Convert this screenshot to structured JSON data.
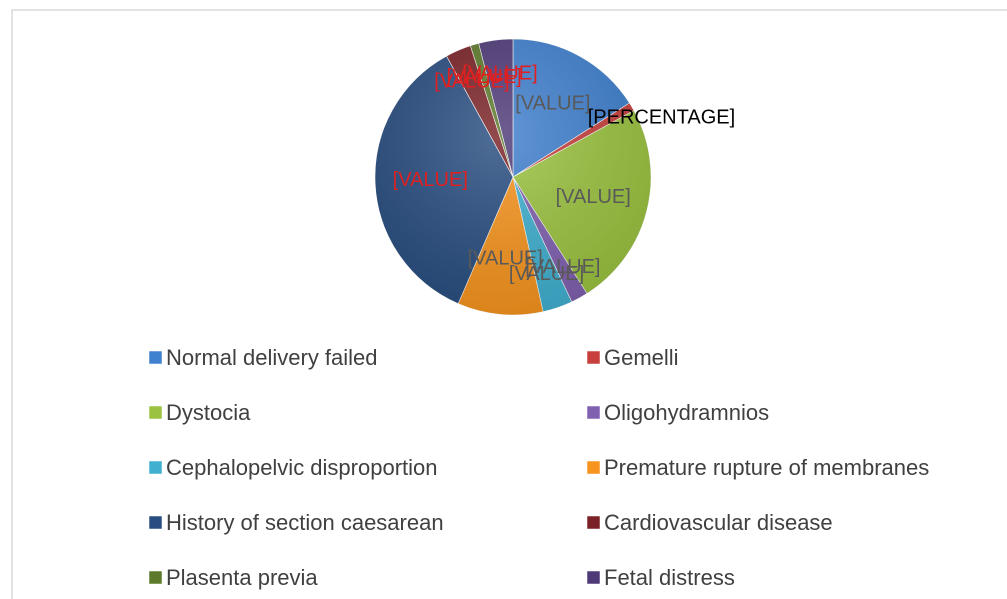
{
  "chart_data": {
    "type": "pie",
    "categories": [
      "Normal delivery failed",
      "Gemelli",
      "Dystocia",
      "Oligohydramnios",
      "Cephalopelvic disproportion",
      "Premature rupture of membranes",
      "History of section caesarean",
      "Cardiovascular disease",
      "Plasenta previa",
      "Fetal distress"
    ],
    "values": [
      16,
      1,
      24,
      2,
      3.5,
      10,
      35.5,
      3,
      1,
      4
    ],
    "value_labels": [
      "[VALUE]",
      "[PERCENTAGE]",
      "[VALUE]",
      "[VALUE]",
      "[VALUE]",
      "[VALUE]",
      "[VALUE]",
      "[VALUE]",
      "[VALUE]",
      "[VALUE]"
    ],
    "colors": [
      "#3f80cf",
      "#c8403d",
      "#9bc33f",
      "#8060b0",
      "#3fb0d0",
      "#f7941d",
      "#284d80",
      "#7a2226",
      "#5c7a2a",
      "#4e3a78"
    ],
    "label_colors": [
      "#595959",
      "#000000",
      "#595959",
      "#595959",
      "#595959",
      "#595959",
      "#e02020",
      "#e02020",
      "#e02020",
      "#e02020"
    ],
    "legend": "bottom"
  }
}
